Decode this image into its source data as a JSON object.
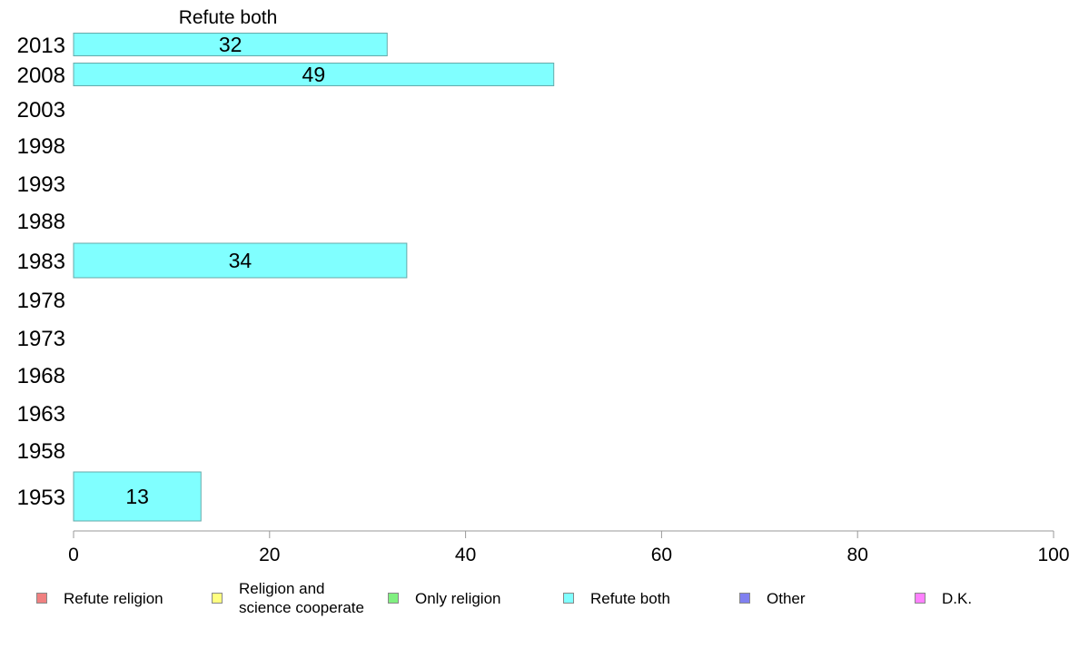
{
  "chart_data": {
    "type": "bar",
    "orientation": "horizontal",
    "title": "Refute both",
    "categories": [
      "2013",
      "2008",
      "2003",
      "1998",
      "1993",
      "1988",
      "1983",
      "1978",
      "1973",
      "1968",
      "1963",
      "1958",
      "1953"
    ],
    "series": [
      {
        "name": "Refute both",
        "color": "#80ffff",
        "values": [
          32,
          49,
          null,
          null,
          null,
          null,
          34,
          null,
          null,
          null,
          null,
          null,
          13
        ],
        "labels": [
          "32",
          "49",
          "",
          "",
          "",
          "",
          "34",
          "",
          "",
          "",
          "",
          "",
          "13"
        ]
      }
    ],
    "xlim": [
      0,
      100
    ],
    "xticks": [
      "0",
      "20",
      "40",
      "60",
      "80",
      "100"
    ],
    "grid": false,
    "legend_position": "bottom"
  },
  "legend": {
    "items": [
      {
        "label": "Refute religion",
        "color": "#f08080"
      },
      {
        "label": "Religion and\nscience cooperate",
        "color": "#ffff80"
      },
      {
        "label": "Only religion",
        "color": "#80f080"
      },
      {
        "label": "Refute both",
        "color": "#80ffff"
      },
      {
        "label": "Other",
        "color": "#8080f0"
      },
      {
        "label": "D.K.",
        "color": "#ff80ff"
      }
    ]
  }
}
